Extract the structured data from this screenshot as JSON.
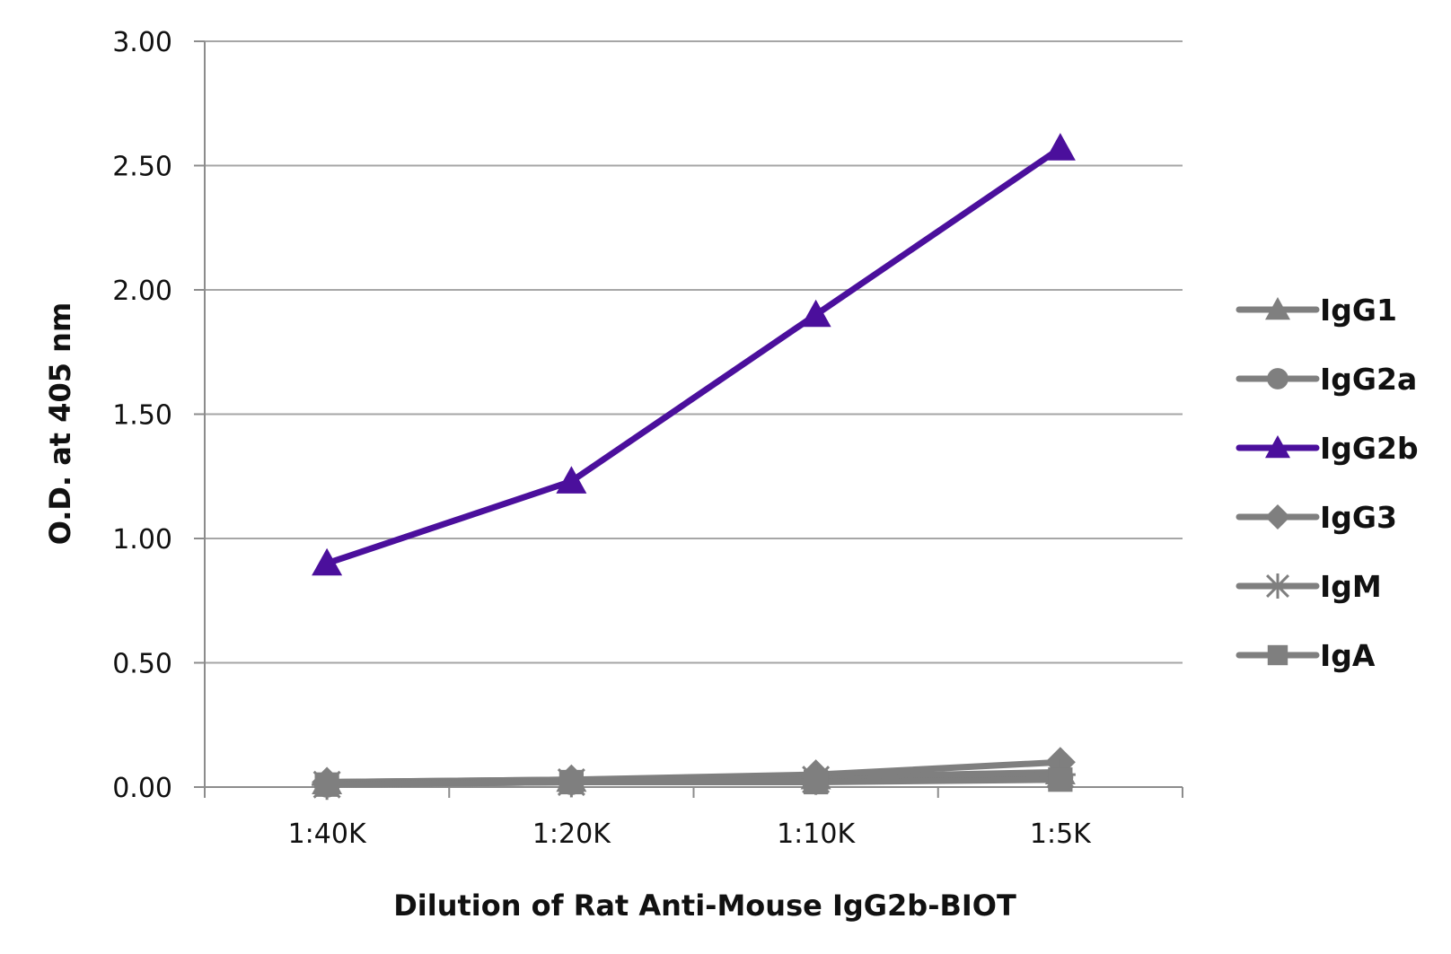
{
  "chart_data": {
    "type": "line",
    "categories": [
      "1:40K",
      "1:20K",
      "1:10K",
      "1:5K"
    ],
    "xlabel": "Dilution of Rat Anti-Mouse IgG2b-BIOT",
    "ylabel": "O.D. at 405 nm",
    "ylim": [
      0,
      3
    ],
    "yticks": [
      "0.00",
      "0.50",
      "1.00",
      "1.50",
      "2.00",
      "2.50",
      "3.00"
    ],
    "grid": true,
    "legend": "right",
    "series": [
      {
        "name": "IgG1",
        "marker": "triangle",
        "color": "#7f7f7f",
        "values": [
          0.02,
          0.03,
          0.04,
          0.06
        ]
      },
      {
        "name": "IgG2a",
        "marker": "circle",
        "color": "#7f7f7f",
        "values": [
          0.01,
          0.02,
          0.03,
          0.04
        ]
      },
      {
        "name": "IgG2b",
        "marker": "triangle",
        "color": "#4b0f9c",
        "values": [
          0.9,
          1.23,
          1.9,
          2.57
        ]
      },
      {
        "name": "IgG3",
        "marker": "diamond",
        "color": "#7f7f7f",
        "values": [
          0.02,
          0.03,
          0.05,
          0.1
        ]
      },
      {
        "name": "IgM",
        "marker": "star",
        "color": "#7f7f7f",
        "values": [
          0.01,
          0.02,
          0.03,
          0.05
        ]
      },
      {
        "name": "IgA",
        "marker": "square",
        "color": "#7f7f7f",
        "values": [
          0.01,
          0.02,
          0.02,
          0.03
        ]
      }
    ]
  }
}
